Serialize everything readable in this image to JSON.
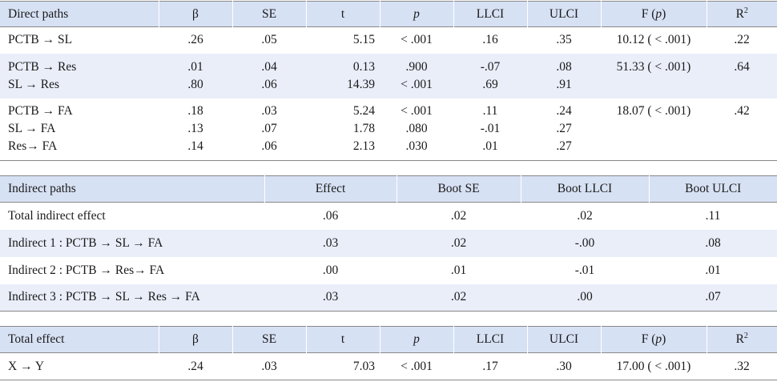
{
  "direct": {
    "headers": [
      "Direct paths",
      "β",
      "SE",
      "t",
      "p",
      "LLCI",
      "ULCI",
      "F (p)",
      "R2"
    ],
    "header_p": "p",
    "header_F_pre": "F (",
    "header_F_p": "p",
    "header_F_post": ")",
    "header_R": "R",
    "header_R_sup": "2",
    "groups": [
      {
        "rows": [
          {
            "path": "PCTB → SL",
            "beta": ".26",
            "se": ".05",
            "t": "5.15",
            "p": "< .001",
            "llci": ".16",
            "ulci": ".35"
          }
        ],
        "F": "10.12 ( < .001)",
        "R2": ".22"
      },
      {
        "rows": [
          {
            "path": "PCTB → Res",
            "beta": ".01",
            "se": ".04",
            "t": "0.13",
            "p": ".900",
            "llci": "-.07",
            "ulci": ".08"
          },
          {
            "path": "SL → Res",
            "beta": ".80",
            "se": ".06",
            "t": "14.39",
            "p": "< .001",
            "llci": ".69",
            "ulci": ".91"
          }
        ],
        "F": "51.33 ( < .001)",
        "R2": ".64"
      },
      {
        "rows": [
          {
            "path": "PCTB → FA",
            "beta": ".18",
            "se": ".03",
            "t": "5.24",
            "p": "< .001",
            "llci": ".11",
            "ulci": ".24"
          },
          {
            "path": "SL → FA",
            "beta": ".13",
            "se": ".07",
            "t": "1.78",
            "p": ".080",
            "llci": "-.01",
            "ulci": ".27"
          },
          {
            "path": "Res→ FA",
            "beta": ".14",
            "se": ".06",
            "t": "2.13",
            "p": ".030",
            "llci": ".01",
            "ulci": ".27"
          }
        ],
        "F": "18.07 ( < .001)",
        "R2": ".42"
      }
    ]
  },
  "indirect": {
    "headers": [
      "Indirect paths",
      "Effect",
      "Boot SE",
      "Boot LLCI",
      "Boot ULCI"
    ],
    "rows": [
      {
        "path": "Total indirect effect",
        "effect": ".06",
        "boot_se": ".02",
        "boot_llci": ".02",
        "boot_ulci": ".11"
      },
      {
        "path": "Indirect 1 : PCTB → SL → FA",
        "effect": ".03",
        "boot_se": ".02",
        "boot_llci": "-.00",
        "boot_ulci": ".08"
      },
      {
        "path": "Indirect 2 : PCTB → Res→ FA",
        "effect": ".00",
        "boot_se": ".01",
        "boot_llci": "-.01",
        "boot_ulci": ".01"
      },
      {
        "path": "Indirect 3 : PCTB → SL → Res → FA",
        "effect": ".03",
        "boot_se": ".02",
        "boot_llci": ".00",
        "boot_ulci": ".07"
      }
    ]
  },
  "total": {
    "headers": [
      "Total effect",
      "β",
      "SE",
      "t",
      "p",
      "LLCI",
      "ULCI",
      "F (p)",
      "R2"
    ],
    "row": {
      "path": "X → Y",
      "beta": ".24",
      "se": ".03",
      "t": "7.03",
      "p": "< .001",
      "llci": ".17",
      "ulci": ".30",
      "F": "17.00 ( < .001)",
      "R2": ".32"
    }
  },
  "colors": {
    "header_bg": "#d7e1f4",
    "band_bg": "#e9eef9",
    "rule": "#888888"
  }
}
